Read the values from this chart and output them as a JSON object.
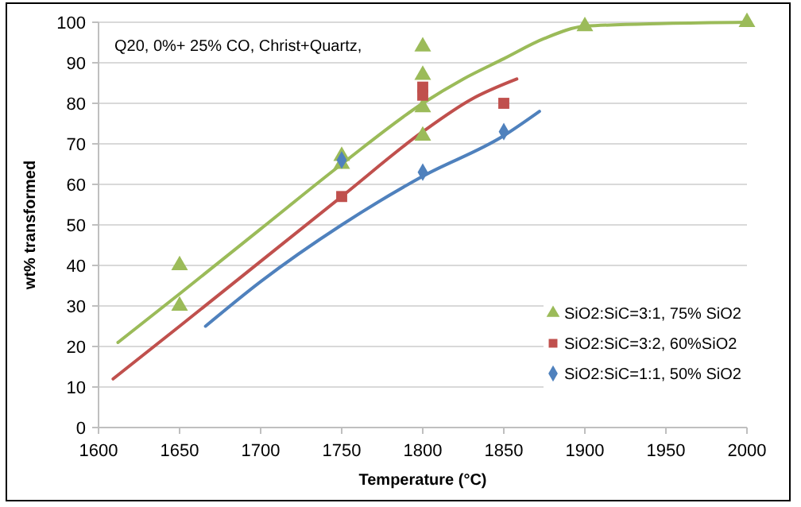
{
  "chart_data": {
    "type": "scatter",
    "xlabel": "Temperature (°C)",
    "ylabel": "wt% transformed",
    "annotations": [
      "Q20, 0%+ 25% CO, Christ+Quartz,"
    ],
    "xlim": [
      1600,
      2000
    ],
    "xticks": [
      1600,
      1650,
      1700,
      1750,
      1800,
      1850,
      1900,
      1950,
      2000
    ],
    "ylim": [
      0,
      100
    ],
    "yticks": [
      0,
      10,
      20,
      30,
      40,
      50,
      60,
      70,
      80,
      90,
      100
    ],
    "grid": "y",
    "legend": "right",
    "series": [
      {
        "type": "line",
        "color": "#9bbb59",
        "marker": "none",
        "x": [
          1612,
          1650,
          1700,
          1750,
          1800,
          1825,
          1850,
          1875,
          1900,
          1950,
          2000
        ],
        "values": [
          21,
          33,
          49,
          65,
          80,
          86,
          91,
          96,
          99,
          99.7,
          100
        ]
      },
      {
        "type": "line",
        "color": "#c0504d",
        "marker": "none",
        "x": [
          1609,
          1650,
          1700,
          1750,
          1800,
          1830,
          1858
        ],
        "values": [
          12,
          25,
          41,
          57,
          73,
          81,
          86
        ]
      },
      {
        "type": "line",
        "color": "#4f81bd",
        "marker": "none",
        "x": [
          1666,
          1700,
          1750,
          1800,
          1850,
          1872
        ],
        "values": [
          25,
          36,
          50,
          62,
          72,
          78
        ]
      },
      {
        "name": "SiO2:SiC=3:1, 75% SiO2",
        "color": "#9bbb59",
        "marker": "triangle",
        "x": [
          1650,
          1650,
          1750,
          1750,
          1800,
          1800,
          1800,
          1800,
          1900,
          2000
        ],
        "values": [
          40,
          30,
          67,
          65,
          94,
          87,
          79,
          72,
          99,
          100
        ]
      },
      {
        "name": "SiO2:SiC=3:2, 60%SiO2",
        "color": "#c0504d",
        "marker": "square",
        "x": [
          1750,
          1800,
          1800,
          1850
        ],
        "values": [
          57,
          84,
          82,
          80
        ]
      },
      {
        "name": "SiO2:SiC=1:1, 50% SiO2",
        "color": "#4f81bd",
        "marker": "diamond",
        "x": [
          1750,
          1800,
          1850
        ],
        "values": [
          66,
          63,
          73
        ]
      }
    ]
  }
}
